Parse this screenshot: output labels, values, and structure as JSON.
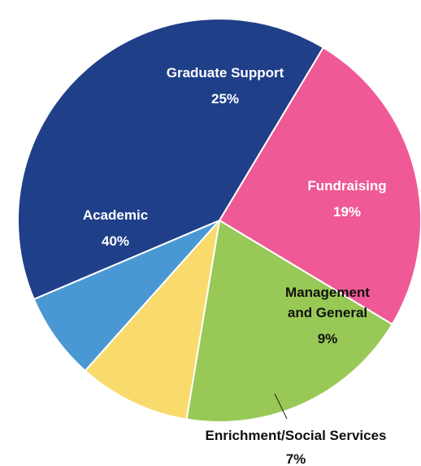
{
  "chart_data": {
    "type": "pie",
    "start_angle_deg": -59,
    "direction": "clockwise",
    "slices": [
      {
        "label_lines": [
          "Graduate Support"
        ],
        "percent_text": "25%",
        "value": 25,
        "color": "#ef5a96",
        "label_color": "#ffffff"
      },
      {
        "label_lines": [
          "Fundraising"
        ],
        "percent_text": "19%",
        "value": 19,
        "color": "#98c856",
        "label_color": "#ffffff"
      },
      {
        "label_lines": [
          "Management",
          "and General"
        ],
        "percent_text": "9%",
        "value": 9,
        "color": "#f8db6c",
        "label_color": "#111111"
      },
      {
        "label_lines": [
          "Enrichment/Social Services"
        ],
        "percent_text": "7%",
        "value": 7,
        "color": "#4a98d3",
        "label_color": "#111111"
      },
      {
        "label_lines": [
          "Academic"
        ],
        "percent_text": "40%",
        "value": 40,
        "color": "#1f3f88",
        "label_color": "#ffffff"
      }
    ]
  }
}
